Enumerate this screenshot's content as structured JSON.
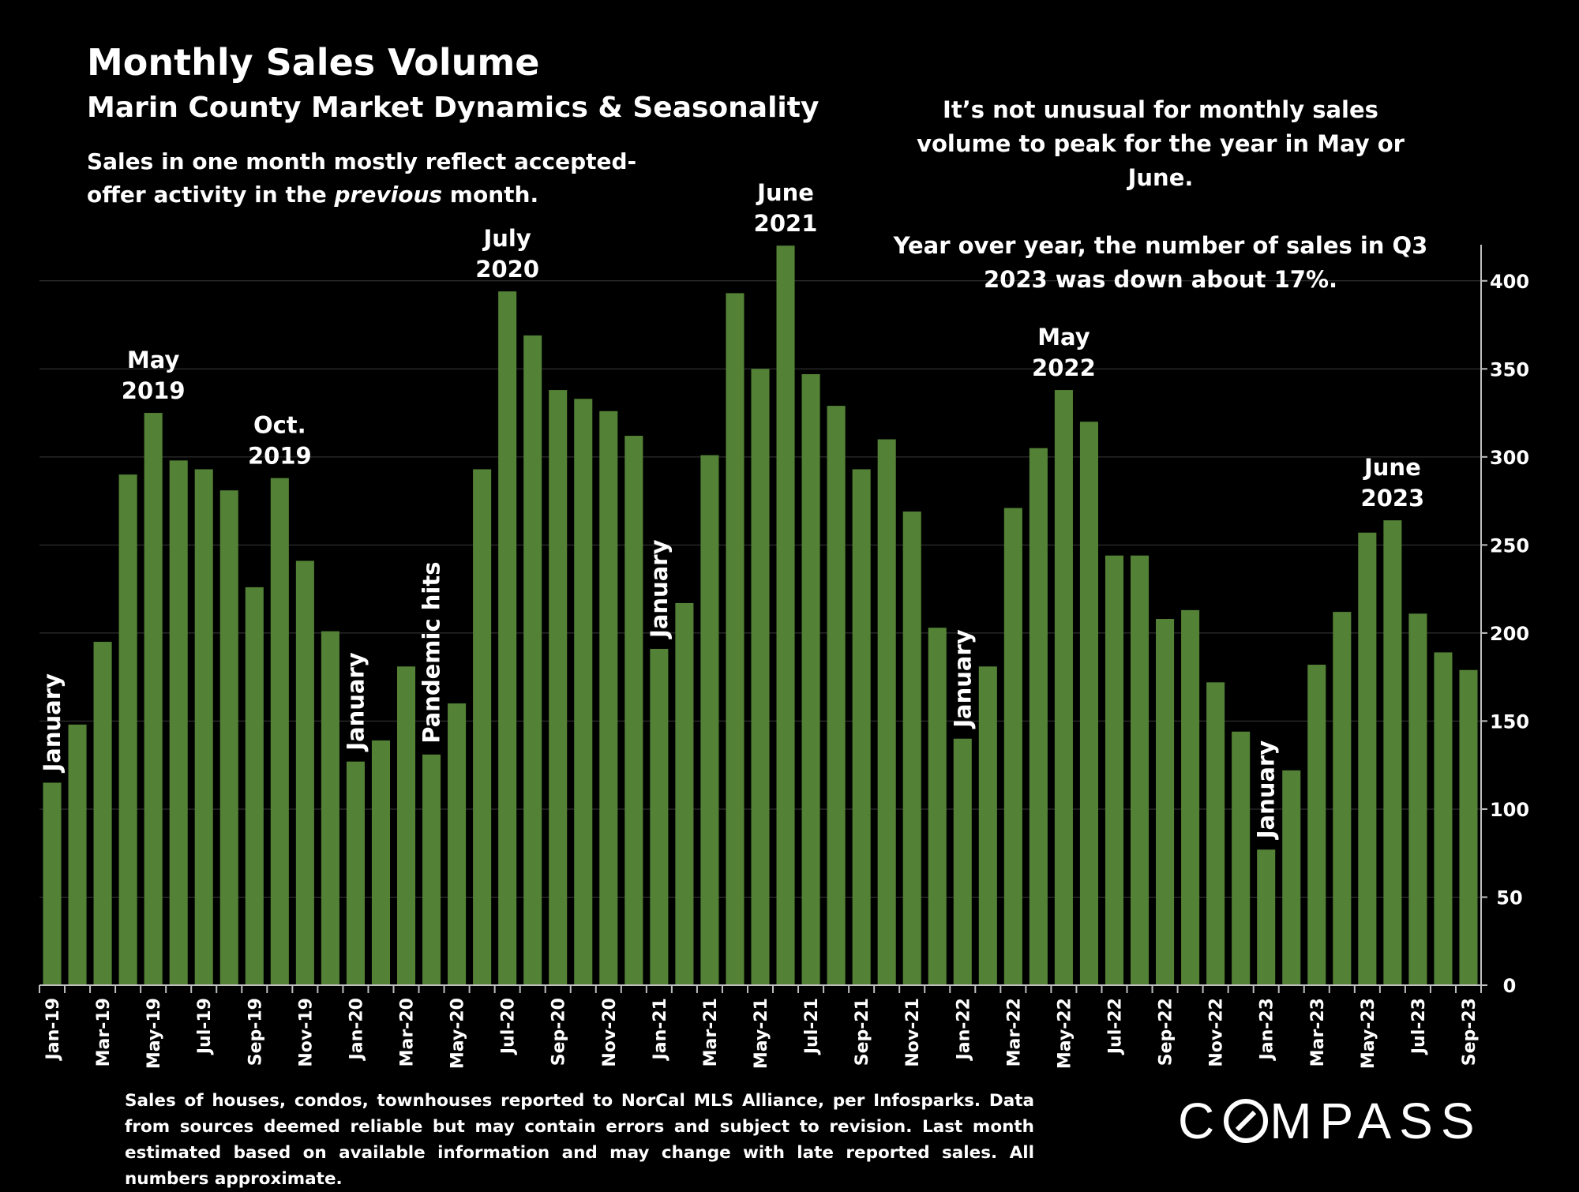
{
  "header": {
    "title": "Monthly Sales Volume",
    "subtitle": "Marin County Market Dynamics & Seasonality",
    "desc_pre": "Sales in one month mostly reflect accepted-offer activity in the ",
    "desc_em": "previous",
    "desc_post": " month."
  },
  "note": {
    "line1": "It’s not unusual for monthly sales volume to peak for the year in May or June.",
    "line2": "Year over year, the number of sales in Q3 2023 was down about 17%."
  },
  "footer": {
    "text": "Sales of houses, condos, townhouses reported to NorCal MLS Alliance, per Infosparks. Data from sources deemed reliable but may contain errors and subject to revision. Last month estimated based on available information and may change with late reported sales. All numbers approximate."
  },
  "logo": {
    "text_left": "C",
    "text_right": "MPASS",
    "icon": "compass-o-icon"
  },
  "colors": {
    "background": "#000000",
    "bar": "#538135",
    "grid": "#3a3a3a",
    "text": "#ffffff"
  },
  "chart_data": {
    "type": "bar",
    "categories": [
      "Jan-19",
      "Feb-19",
      "Mar-19",
      "Apr-19",
      "May-19",
      "Jun-19",
      "Jul-19",
      "Aug-19",
      "Sep-19",
      "Oct-19",
      "Nov-19",
      "Dec-19",
      "Jan-20",
      "Feb-20",
      "Mar-20",
      "Apr-20",
      "May-20",
      "Jun-20",
      "Jul-20",
      "Aug-20",
      "Sep-20",
      "Oct-20",
      "Nov-20",
      "Dec-20",
      "Jan-21",
      "Feb-21",
      "Mar-21",
      "Apr-21",
      "May-21",
      "Jun-21",
      "Jul-21",
      "Aug-21",
      "Sep-21",
      "Oct-21",
      "Nov-21",
      "Dec-21",
      "Jan-22",
      "Feb-22",
      "Mar-22",
      "Apr-22",
      "May-22",
      "Jun-22",
      "Jul-22",
      "Aug-22",
      "Sep-22",
      "Oct-22",
      "Nov-22",
      "Dec-22",
      "Jan-23",
      "Feb-23",
      "Mar-23",
      "Apr-23",
      "May-23",
      "Jun-23",
      "Jul-23",
      "Aug-23",
      "Sep-23"
    ],
    "values": [
      115,
      148,
      195,
      290,
      325,
      298,
      293,
      281,
      226,
      288,
      241,
      201,
      127,
      139,
      181,
      131,
      160,
      293,
      394,
      369,
      338,
      333,
      326,
      312,
      191,
      217,
      301,
      393,
      350,
      420,
      347,
      329,
      293,
      310,
      269,
      203,
      140,
      181,
      271,
      305,
      338,
      320,
      244,
      244,
      208,
      213,
      172,
      144,
      77,
      122,
      182,
      212,
      257,
      264,
      211,
      189,
      179
    ],
    "tick_labels": [
      "Jan-19",
      "Mar-19",
      "May-19",
      "Jul-19",
      "Sep-19",
      "Nov-19",
      "Jan-20",
      "Mar-20",
      "May-20",
      "Jul-20",
      "Sep-20",
      "Nov-20",
      "Jan-21",
      "Mar-21",
      "May-21",
      "Jul-21",
      "Sep-21",
      "Nov-21",
      "Jan-22",
      "Mar-22",
      "May-22",
      "Jul-22",
      "Sep-22",
      "Nov-22",
      "Jan-23",
      "Mar-23",
      "May-23",
      "Jul-23",
      "Sep-23"
    ],
    "y_ticks": [
      0,
      50,
      100,
      150,
      200,
      250,
      300,
      350,
      400
    ],
    "ylim": [
      0,
      425
    ],
    "y_axis_side": "right",
    "grid": true,
    "annotations": [
      {
        "index": 0,
        "lines": [
          "January"
        ],
        "rotated": true
      },
      {
        "index": 4,
        "lines": [
          "May",
          "2019"
        ],
        "rotated": false
      },
      {
        "index": 9,
        "lines": [
          "Oct.",
          "2019"
        ],
        "rotated": false
      },
      {
        "index": 12,
        "lines": [
          "January"
        ],
        "rotated": true
      },
      {
        "index": 15,
        "lines": [
          "Pandemic hits"
        ],
        "rotated": true
      },
      {
        "index": 18,
        "lines": [
          "July",
          "2020"
        ],
        "rotated": false
      },
      {
        "index": 24,
        "lines": [
          "January"
        ],
        "rotated": true
      },
      {
        "index": 29,
        "lines": [
          "June",
          "2021"
        ],
        "rotated": false
      },
      {
        "index": 36,
        "lines": [
          "January"
        ],
        "rotated": true
      },
      {
        "index": 40,
        "lines": [
          "May",
          "2022"
        ],
        "rotated": false
      },
      {
        "index": 48,
        "lines": [
          "January"
        ],
        "rotated": true
      },
      {
        "index": 53,
        "lines": [
          "June",
          "2023"
        ],
        "rotated": false
      }
    ]
  }
}
